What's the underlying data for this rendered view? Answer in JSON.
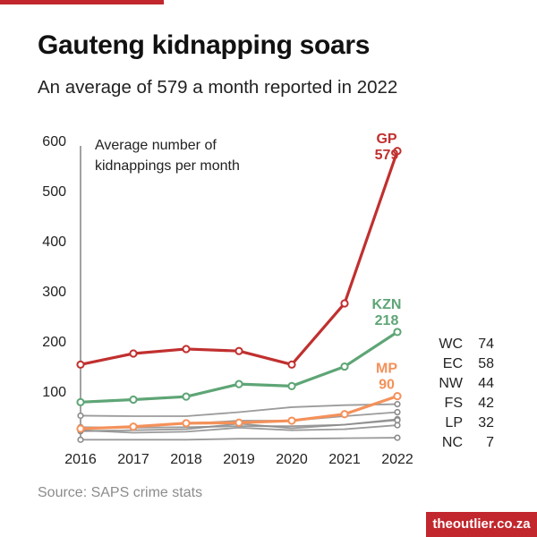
{
  "header": {
    "title": "Gauteng kidnapping soars",
    "subtitle": "An average of 579 a month reported in 2022"
  },
  "footer": {
    "source": "Source: SAPS crime stats",
    "brand": "theoutlier.co.za"
  },
  "colors": {
    "accent": "#c1272d",
    "gp": "#c0302f",
    "kzn": "#5ea576",
    "mp": "#f4915a",
    "others": "#8a8a8a"
  },
  "chart_data": {
    "type": "line",
    "title": "Gauteng kidnapping soars",
    "subtitle": "An average of 579 a month reported in 2022",
    "ylabel": "Average number of kidnappings per month",
    "ylabel_lines": [
      "Average number of",
      "kidnappings per month"
    ],
    "x": [
      "2016",
      "2017",
      "2018",
      "2019",
      "2020",
      "2021",
      "2022"
    ],
    "ylim": [
      0,
      600
    ],
    "yticks": [
      "100",
      "200",
      "300",
      "400",
      "500",
      "600"
    ],
    "ytick_values": [
      100,
      200,
      300,
      400,
      500,
      600
    ],
    "series": [
      {
        "name": "GP",
        "label": "GP",
        "value_label": "579",
        "role": "highlight-gp",
        "values": [
          153,
          175,
          184,
          180,
          153,
          275,
          579
        ]
      },
      {
        "name": "KZN",
        "label": "KZN",
        "value_label": "218",
        "role": "highlight-kzn",
        "values": [
          78,
          83,
          89,
          114,
          110,
          149,
          218
        ]
      },
      {
        "name": "MP",
        "label": "MP",
        "value_label": "90",
        "role": "highlight-mp",
        "values": [
          25,
          29,
          36,
          37,
          41,
          54,
          90
        ]
      },
      {
        "name": "WC",
        "role": "other",
        "values": [
          51,
          50,
          50,
          58,
          68,
          72,
          74
        ]
      },
      {
        "name": "EC",
        "role": "other",
        "values": [
          24,
          29,
          35,
          41,
          41,
          50,
          58
        ]
      },
      {
        "name": "NW",
        "role": "other",
        "values": [
          20,
          22,
          24,
          35,
          26,
          33,
          44
        ]
      },
      {
        "name": "FS",
        "role": "other",
        "values": [
          28,
          27,
          28,
          30,
          30,
          33,
          42
        ]
      },
      {
        "name": "LP",
        "role": "other",
        "values": [
          22,
          17,
          19,
          27,
          22,
          24,
          32
        ]
      },
      {
        "name": "NC",
        "role": "other",
        "values": [
          3,
          3,
          3,
          5,
          5,
          6,
          7
        ]
      }
    ],
    "side_legend": [
      {
        "name": "WC",
        "value": "74"
      },
      {
        "name": "EC",
        "value": "58"
      },
      {
        "name": "NW",
        "value": "44"
      },
      {
        "name": "FS",
        "value": "42"
      },
      {
        "name": "LP",
        "value": "32"
      },
      {
        "name": "NC",
        "value": "7"
      }
    ]
  }
}
